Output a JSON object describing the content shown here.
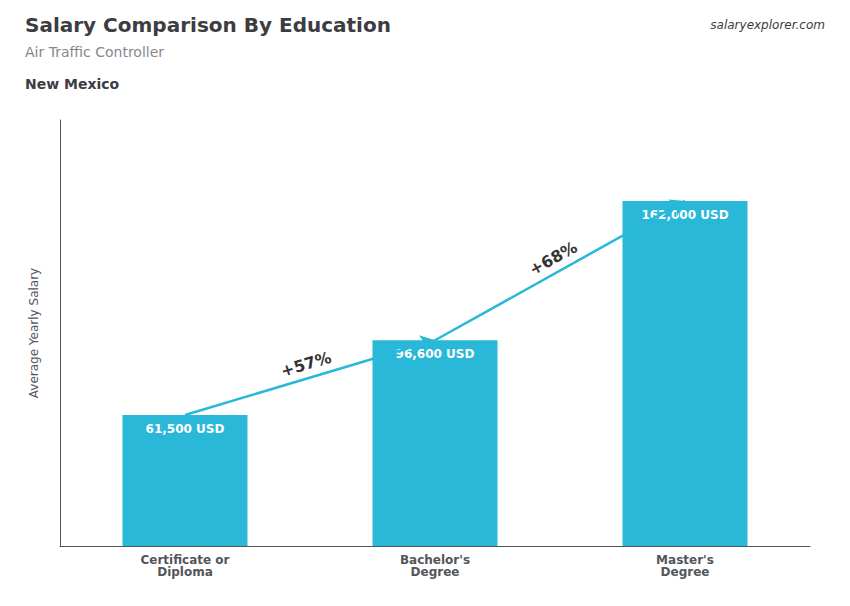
{
  "chart_data": {
    "type": "bar",
    "title": "Salary Comparison By Education",
    "subtitle": "Air Traffic Controller",
    "location": "New Mexico",
    "source": "salaryexplorer.com",
    "y_label": "Average Yearly Salary",
    "categories": [
      "Certificate or\nDiploma",
      "Bachelor's\nDegree",
      "Master's\nDegree"
    ],
    "values": [
      61500,
      96600,
      162000
    ],
    "value_labels": [
      "61,500 USD",
      "96,600 USD",
      "162,000 USD"
    ],
    "data_labels": true,
    "annotations": [
      "+57%",
      "+68%"
    ],
    "color": "#29b8d8",
    "ylim": [
      0,
      200000
    ],
    "grid": false,
    "tick_labels": "x"
  }
}
